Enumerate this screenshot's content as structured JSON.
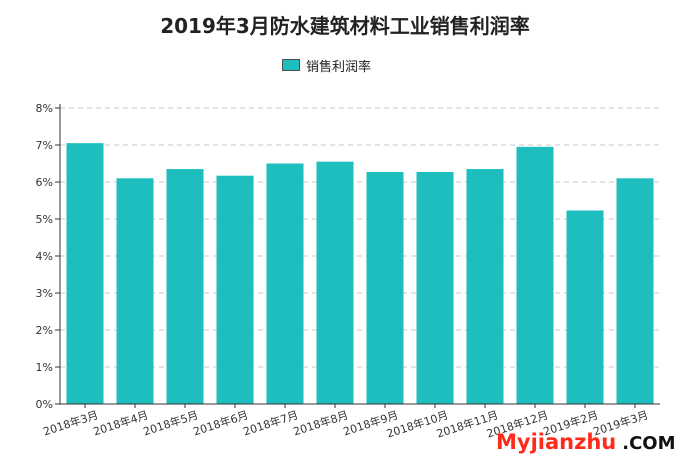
{
  "chart_data": {
    "type": "bar",
    "title": "2019年3月防水建筑材料工业销售利润率",
    "categories": [
      "2018年3月",
      "2018年4月",
      "2018年5月",
      "2018年6月",
      "2018年7月",
      "2018年8月",
      "2018年9月",
      "2018年10月",
      "2018年11月",
      "2018年12月",
      "2019年2月",
      "2019年3月"
    ],
    "series": [
      {
        "name": "销售利润率",
        "values": [
          7.05,
          6.1,
          6.35,
          6.17,
          6.5,
          6.55,
          6.27,
          6.27,
          6.35,
          6.95,
          5.23,
          6.1
        ]
      }
    ],
    "yticks": [
      "0%",
      "1%",
      "2%",
      "3%",
      "4%",
      "5%",
      "6%",
      "7%",
      "8%"
    ],
    "ylim": [
      0,
      8
    ],
    "grid": "horizontal-dashed",
    "legend_position": "top-center",
    "bar_color": "#1ebebe",
    "xlabel": "",
    "ylabel": ""
  },
  "watermark": {
    "brand": "Myjianzhu",
    "suffix": ".COM",
    "color": "#ff2a1a"
  }
}
